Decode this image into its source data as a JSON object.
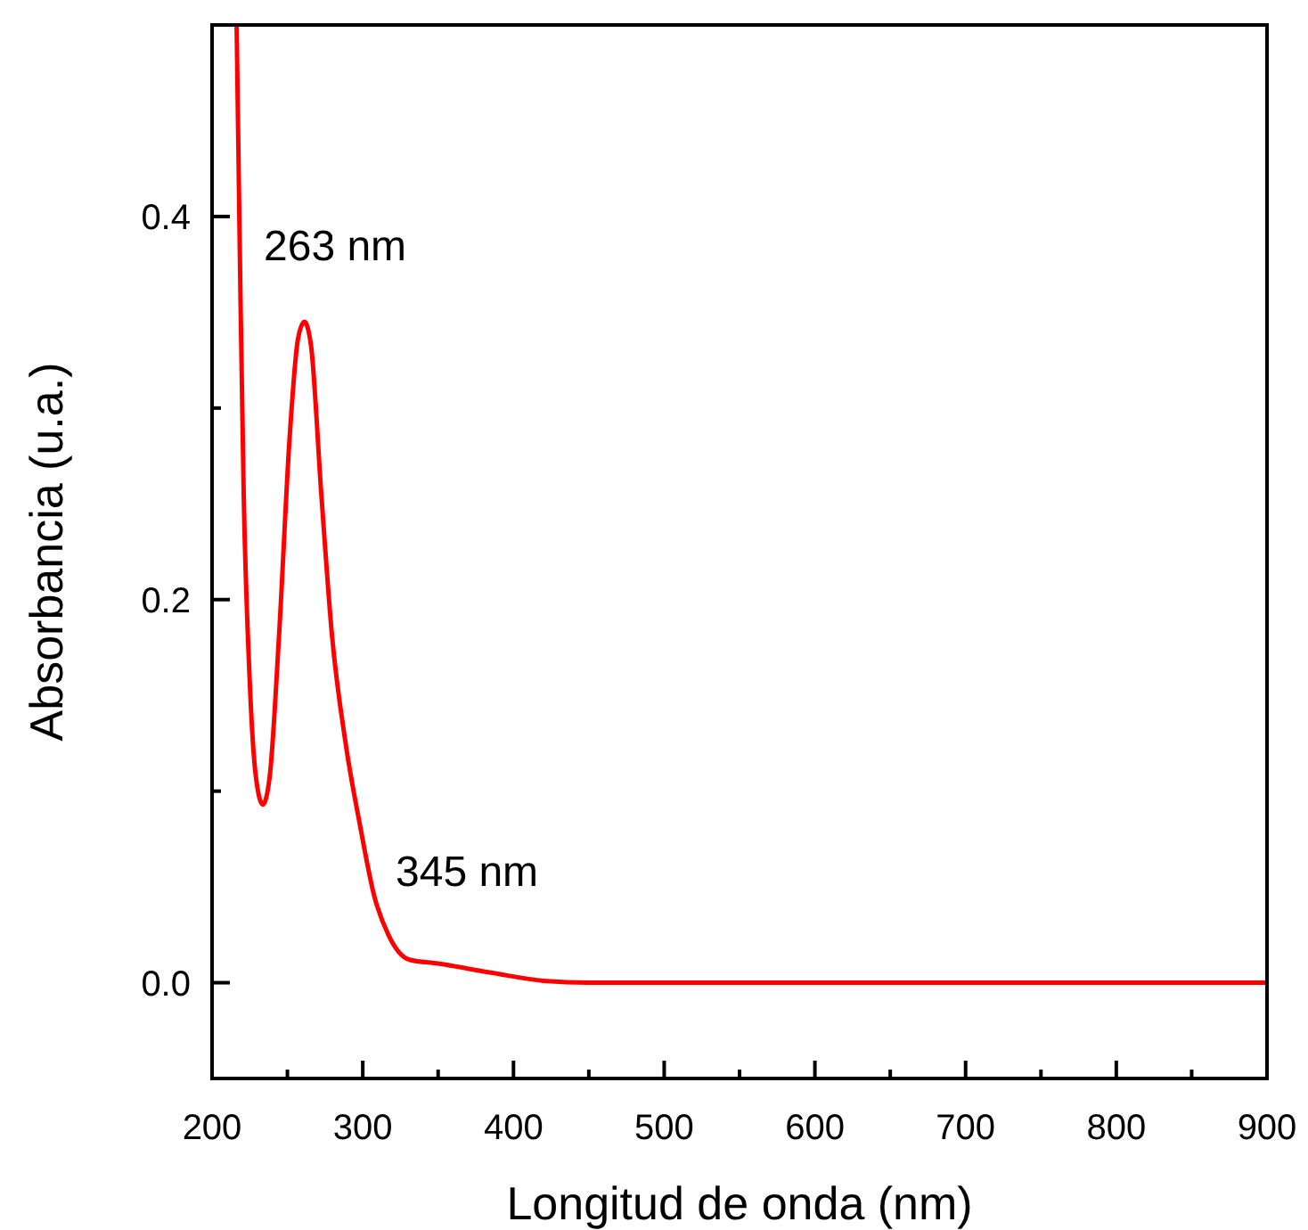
{
  "chart_data": {
    "type": "line",
    "xlabel": "Longitud de onda (nm)",
    "ylabel": "Absorbancia (u.a.)",
    "xlim": [
      200,
      900
    ],
    "xticks": [
      200,
      300,
      400,
      500,
      600,
      700,
      800,
      900
    ],
    "ylim": [
      -0.05,
      0.5
    ],
    "yticks": [
      {
        "value": 0,
        "label": "0.0"
      },
      {
        "value": 0.2,
        "label": "0.2"
      },
      {
        "value": 0.4,
        "label": "0.4"
      }
    ],
    "grid": false,
    "marker": "none",
    "line_style": "solid",
    "annotations": [
      "263 nm",
      "345 nm"
    ],
    "series": [
      {
        "color": "#ff0000",
        "x": [
          216.3,
          218.7,
          221,
          224.7,
          229,
          233.7,
          238.3,
          244.5,
          251.5,
          257,
          261.3,
          265.6,
          272.5,
          279.5,
          289,
          298.2,
          307.7,
          317,
          331,
          349.8,
          387,
          420,
          450,
          500,
          600,
          700,
          800,
          900
        ],
        "values": [
          0.5,
          0.366,
          0.255,
          0.163,
          0.108,
          0.093,
          0.108,
          0.182,
          0.285,
          0.336,
          0.345,
          0.333,
          0.255,
          0.182,
          0.123,
          0.082,
          0.045,
          0.025,
          0.012,
          0.01,
          0.005,
          0.001,
          0,
          0,
          0,
          0,
          0,
          0
        ]
      }
    ]
  }
}
